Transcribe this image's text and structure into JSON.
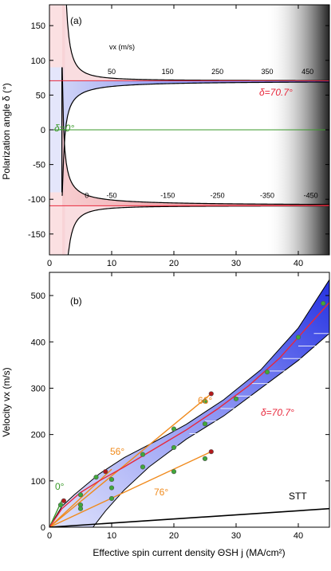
{
  "chart_data": [
    {
      "type": "line",
      "panel_label": "(a)",
      "xlabel": "",
      "ylabel": "Polarization angle δ (°)",
      "xlim": [
        0,
        45
      ],
      "ylim": [
        -180,
        180
      ],
      "xticks": [
        "0",
        "10",
        "20",
        "30",
        "40"
      ],
      "yticks": [
        "150",
        "100",
        "50",
        "0",
        "-50",
        "-100",
        "-150"
      ],
      "vx_label": "vx (m/s)",
      "contour_labels_upper": [
        "50",
        "150",
        "250",
        "350",
        "450"
      ],
      "contour_labels_lower": [
        "0",
        "-50",
        "-150",
        "-250",
        "-350",
        "-450"
      ],
      "annotations": [
        {
          "text": "δ=70.7°",
          "color": "#e8283c"
        },
        {
          "text": "δ=0°",
          "color": "#3a9a2a"
        }
      ],
      "horizontal_lines": [
        {
          "y": 70.7,
          "color": "#e8283c"
        },
        {
          "y": 0,
          "color": "#3a9a2a"
        }
      ],
      "boundary_asymptote_x": 2.0
    },
    {
      "type": "scatter",
      "panel_label": "(b)",
      "xlabel": "Effective spin current density  ΘSH j (MA/cm²)",
      "ylabel": "Velocity vx (m/s)",
      "xlim": [
        0,
        45
      ],
      "ylim": [
        0,
        550
      ],
      "xticks": [
        "0",
        "10",
        "20",
        "30",
        "40"
      ],
      "yticks": [
        "0",
        "100",
        "200",
        "300",
        "400",
        "500"
      ],
      "series": [
        {
          "name": "0°",
          "color": "#3a9a2a",
          "x": [
            0,
            2
          ],
          "y": [
            0,
            58
          ]
        },
        {
          "name": "56°",
          "color": "#f08a1c",
          "x": [
            0,
            10
          ],
          "y": [
            0,
            125
          ]
        },
        {
          "name": "66°",
          "color": "#f08a1c",
          "x": [
            0,
            26
          ],
          "y": [
            0,
            288
          ]
        },
        {
          "name": "76°",
          "color": "#f08a1c",
          "x": [
            0,
            26
          ],
          "y": [
            0,
            163
          ]
        },
        {
          "name": "δ=70.7°",
          "color": "#e8283c",
          "x": [
            0,
            2,
            5,
            8,
            12,
            17,
            22,
            27,
            32,
            37,
            42,
            45
          ],
          "y": [
            0,
            40,
            75,
            100,
            130,
            170,
            210,
            255,
            305,
            365,
            440,
            485
          ]
        },
        {
          "name": "STT",
          "color": "#000000",
          "x": [
            0,
            45
          ],
          "y": [
            0,
            40
          ]
        }
      ],
      "points": [
        {
          "x": 1.8,
          "y": 48
        },
        {
          "x": 5,
          "y": 70
        },
        {
          "x": 5,
          "y": 48
        },
        {
          "x": 5,
          "y": 40
        },
        {
          "x": 7.5,
          "y": 108
        },
        {
          "x": 10,
          "y": 103
        },
        {
          "x": 10,
          "y": 85
        },
        {
          "x": 10,
          "y": 62
        },
        {
          "x": 15,
          "y": 157
        },
        {
          "x": 15,
          "y": 130
        },
        {
          "x": 20,
          "y": 212
        },
        {
          "x": 20,
          "y": 172
        },
        {
          "x": 20,
          "y": 120
        },
        {
          "x": 25,
          "y": 272
        },
        {
          "x": 25,
          "y": 223
        },
        {
          "x": 25,
          "y": 148
        },
        {
          "x": 30,
          "y": 277
        },
        {
          "x": 35,
          "y": 335
        },
        {
          "x": 40,
          "y": 410
        },
        {
          "x": 44,
          "y": 483
        }
      ],
      "red_points": [
        {
          "x": 2.3,
          "y": 57
        },
        {
          "x": 9,
          "y": 120
        },
        {
          "x": 26,
          "y": 288
        },
        {
          "x": 26,
          "y": 163
        }
      ],
      "annotations": [
        {
          "text": "0°",
          "color": "#3a9a2a"
        },
        {
          "text": "56°",
          "color": "#f08a1c"
        },
        {
          "text": "66°",
          "color": "#f08a1c"
        },
        {
          "text": "76°",
          "color": "#f08a1c"
        },
        {
          "text": "δ=70.7°",
          "color": "#e8283c"
        },
        {
          "text": "STT",
          "color": "#000000"
        }
      ]
    }
  ]
}
